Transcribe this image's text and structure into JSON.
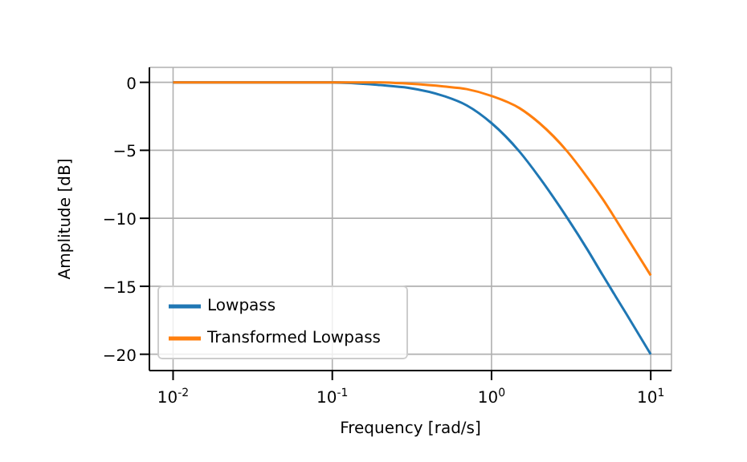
{
  "chart_data": {
    "type": "line",
    "xlabel": "Frequency [rad/s]",
    "ylabel": "Amplitude [dB]",
    "x": [
      0.01,
      0.03,
      0.1,
      0.2,
      0.3,
      0.5,
      0.7,
      1,
      1.5,
      2,
      3,
      4,
      5,
      7,
      10
    ],
    "series": [
      {
        "name": "Lowpass",
        "color": "#1f77b4",
        "values": [
          0,
          0,
          0,
          -0.2,
          -0.4,
          -1,
          -1.7,
          -3,
          -5.1,
          -7,
          -10,
          -12.3,
          -14.2,
          -17,
          -20
        ]
      },
      {
        "name": "Transformed Lowpass",
        "color": "#ff7f0e",
        "values": [
          0,
          0,
          0,
          0,
          -0.1,
          -0.3,
          -0.5,
          -1,
          -1.9,
          -3,
          -5.1,
          -7,
          -8.6,
          -11.3,
          -14.2
        ]
      }
    ],
    "log": "x",
    "xlim": [
      0.0071,
      13.5
    ],
    "ylim": [
      -21.2,
      1.1
    ],
    "xticks": [
      {
        "value": 0.01,
        "label": "10$^{-2}$"
      },
      {
        "value": 0.1,
        "label": "10$^{-1}$"
      },
      {
        "value": 1,
        "label": "10$^{0}$"
      },
      {
        "value": 10,
        "label": "10$^{1}$"
      }
    ],
    "yticks": [
      -20,
      -15,
      -10,
      -5,
      0
    ],
    "grid": true,
    "legend": "bottom left",
    "marker": "none",
    "line_style": "solid"
  }
}
